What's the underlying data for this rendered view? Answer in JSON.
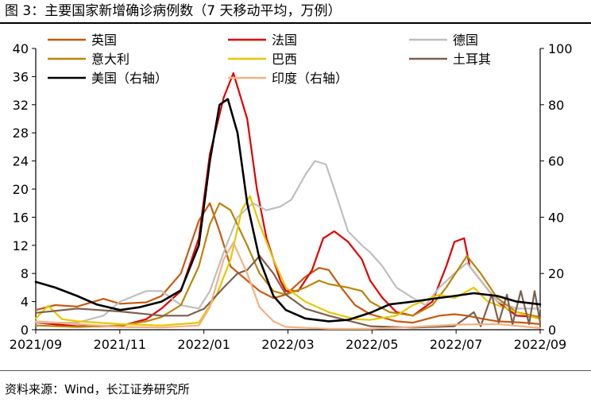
{
  "figure": {
    "title": "图 3：主要国家新增确诊病例数（7 天移动平均，万例）",
    "source": "资料来源：Wind，长江证券研究所"
  },
  "chart_data": {
    "type": "line",
    "title": "",
    "xlabel": "",
    "ylabel": "",
    "x_tick_labels": [
      "2021/09",
      "2021/11",
      "2022/01",
      "2022/03",
      "2022/05",
      "2022/07",
      "2022/09"
    ],
    "x_range": [
      "2021-09",
      "2022-09"
    ],
    "ylim_left": [
      0,
      40
    ],
    "yticks_left": [
      0,
      4,
      8,
      12,
      16,
      20,
      24,
      28,
      32,
      36,
      40
    ],
    "ylim_right": [
      0,
      100
    ],
    "yticks_right": [
      0,
      20,
      40,
      60,
      80,
      100
    ],
    "grid": false,
    "legend_position": "top",
    "series": [
      {
        "name": "英国",
        "axis": "left",
        "color": "#C55A11",
        "points": [
          [
            "2021-09",
            2.8
          ],
          [
            "2021-09-15",
            3.5
          ],
          [
            "2021-10",
            3.3
          ],
          [
            "2021-10-20",
            4.4
          ],
          [
            "2021-11",
            3.7
          ],
          [
            "2021-11-20",
            3.9
          ],
          [
            "2021-12",
            4.8
          ],
          [
            "2021-12-15",
            8.0
          ],
          [
            "2021-12-28",
            15.5
          ],
          [
            "2022-01-05",
            18.0
          ],
          [
            "2022-01-12",
            14.0
          ],
          [
            "2022-01-20",
            9.0
          ],
          [
            "2022-02",
            7.0
          ],
          [
            "2022-02-10",
            5.5
          ],
          [
            "2022-02-20",
            4.5
          ],
          [
            "2022-03",
            5.0
          ],
          [
            "2022-03-15",
            7.5
          ],
          [
            "2022-03-25",
            8.8
          ],
          [
            "2022-04",
            8.5
          ],
          [
            "2022-04-10",
            6.0
          ],
          [
            "2022-04-20",
            3.5
          ],
          [
            "2022-05",
            2.2
          ],
          [
            "2022-05-20",
            1.2
          ],
          [
            "2022-06",
            1.0
          ],
          [
            "2022-06-20",
            2.0
          ],
          [
            "2022-07",
            2.2
          ],
          [
            "2022-07-10",
            2.0
          ],
          [
            "2022-07-20",
            1.6
          ],
          [
            "2022-08",
            1.2
          ],
          [
            "2022-08-20",
            1.0
          ],
          [
            "2022-09",
            0.8
          ]
        ]
      },
      {
        "name": "法国",
        "axis": "left",
        "color": "#E00000",
        "points": [
          [
            "2021-09",
            1.0
          ],
          [
            "2021-10",
            0.5
          ],
          [
            "2021-11",
            0.5
          ],
          [
            "2021-11-20",
            1.5
          ],
          [
            "2021-12",
            3.0
          ],
          [
            "2021-12-15",
            5.5
          ],
          [
            "2021-12-28",
            13.0
          ],
          [
            "2022-01-05",
            25.0
          ],
          [
            "2022-01-15",
            33.0
          ],
          [
            "2022-01-22",
            36.5
          ],
          [
            "2022-02",
            30.0
          ],
          [
            "2022-02-08",
            20.0
          ],
          [
            "2022-02-15",
            13.0
          ],
          [
            "2022-02-25",
            7.0
          ],
          [
            "2022-03",
            5.5
          ],
          [
            "2022-03-10",
            5.5
          ],
          [
            "2022-03-20",
            8.5
          ],
          [
            "2022-03-28",
            13.0
          ],
          [
            "2022-04-05",
            14.0
          ],
          [
            "2022-04-15",
            12.5
          ],
          [
            "2022-04-25",
            10.0
          ],
          [
            "2022-05",
            7.0
          ],
          [
            "2022-05-10",
            4.5
          ],
          [
            "2022-05-20",
            2.5
          ],
          [
            "2022-06",
            2.0
          ],
          [
            "2022-06-15",
            4.0
          ],
          [
            "2022-06-25",
            9.0
          ],
          [
            "2022-07",
            12.5
          ],
          [
            "2022-07-08",
            13.0
          ],
          [
            "2022-07-12",
            9.0
          ],
          [
            "2022-07-20",
            7.0
          ],
          [
            "2022-08",
            4.0
          ],
          [
            "2022-08-15",
            2.0
          ],
          [
            "2022-09",
            1.8
          ]
        ]
      },
      {
        "name": "德国",
        "axis": "left",
        "color": "#BFBFBF",
        "points": [
          [
            "2021-09",
            1.0
          ],
          [
            "2021-10",
            1.0
          ],
          [
            "2021-10-20",
            2.0
          ],
          [
            "2021-11",
            4.0
          ],
          [
            "2021-11-20",
            5.5
          ],
          [
            "2021-12",
            5.5
          ],
          [
            "2021-12-15",
            3.5
          ],
          [
            "2021-12-28",
            3.0
          ],
          [
            "2022-01-05",
            5.5
          ],
          [
            "2022-01-15",
            11.0
          ],
          [
            "2022-01-25",
            16.0
          ],
          [
            "2022-02-05",
            18.0
          ],
          [
            "2022-02-15",
            17.0
          ],
          [
            "2022-02-25",
            17.5
          ],
          [
            "2022-03-05",
            18.5
          ],
          [
            "2022-03-15",
            22.0
          ],
          [
            "2022-03-22",
            24.0
          ],
          [
            "2022-03-30",
            23.5
          ],
          [
            "2022-04-05",
            20.0
          ],
          [
            "2022-04-15",
            14.0
          ],
          [
            "2022-04-25",
            12.0
          ],
          [
            "2022-05",
            11.0
          ],
          [
            "2022-05-10",
            9.0
          ],
          [
            "2022-05-20",
            6.0
          ],
          [
            "2022-06",
            4.5
          ],
          [
            "2022-06-10",
            3.5
          ],
          [
            "2022-06-20",
            6.0
          ],
          [
            "2022-07",
            8.0
          ],
          [
            "2022-07-10",
            9.5
          ],
          [
            "2022-07-20",
            7.0
          ],
          [
            "2022-08",
            4.0
          ],
          [
            "2022-08-15",
            3.0
          ],
          [
            "2022-09",
            3.0
          ]
        ]
      },
      {
        "name": "意大利",
        "axis": "left",
        "color": "#B8860B",
        "points": [
          [
            "2021-09",
            0.6
          ],
          [
            "2021-10",
            0.4
          ],
          [
            "2021-11",
            0.6
          ],
          [
            "2021-11-20",
            1.2
          ],
          [
            "2021-12",
            1.8
          ],
          [
            "2021-12-15",
            3.5
          ],
          [
            "2021-12-28",
            9.0
          ],
          [
            "2022-01-05",
            15.0
          ],
          [
            "2022-01-12",
            18.0
          ],
          [
            "2022-01-20",
            17.0
          ],
          [
            "2022-02",
            12.0
          ],
          [
            "2022-02-10",
            8.0
          ],
          [
            "2022-02-20",
            5.5
          ],
          [
            "2022-03",
            5.0
          ],
          [
            "2022-03-15",
            6.0
          ],
          [
            "2022-03-25",
            7.0
          ],
          [
            "2022-04",
            6.5
          ],
          [
            "2022-04-15",
            6.0
          ],
          [
            "2022-04-25",
            5.5
          ],
          [
            "2022-05",
            4.0
          ],
          [
            "2022-05-15",
            2.5
          ],
          [
            "2022-06",
            2.0
          ],
          [
            "2022-06-15",
            3.5
          ],
          [
            "2022-06-25",
            6.0
          ],
          [
            "2022-07-05",
            9.0
          ],
          [
            "2022-07-10",
            10.5
          ],
          [
            "2022-07-20",
            8.0
          ],
          [
            "2022-08",
            4.5
          ],
          [
            "2022-08-15",
            2.5
          ],
          [
            "2022-09",
            1.8
          ]
        ]
      },
      {
        "name": "巴西",
        "axis": "left",
        "color": "#E6C700",
        "points": [
          [
            "2021-09",
            1.6
          ],
          [
            "2021-09-10",
            3.4
          ],
          [
            "2021-09-20",
            1.5
          ],
          [
            "2021-10",
            1.2
          ],
          [
            "2021-11",
            0.8
          ],
          [
            "2021-12",
            0.6
          ],
          [
            "2021-12-28",
            1.0
          ],
          [
            "2022-01-10",
            5.0
          ],
          [
            "2022-01-20",
            10.0
          ],
          [
            "2022-01-28",
            17.0
          ],
          [
            "2022-02-03",
            19.0
          ],
          [
            "2022-02-10",
            15.0
          ],
          [
            "2022-02-20",
            10.0
          ],
          [
            "2022-03",
            6.0
          ],
          [
            "2022-03-15",
            4.0
          ],
          [
            "2022-04",
            2.5
          ],
          [
            "2022-04-20",
            1.5
          ],
          [
            "2022-05",
            1.4
          ],
          [
            "2022-05-20",
            2.0
          ],
          [
            "2022-06",
            3.5
          ],
          [
            "2022-06-20",
            5.0
          ],
          [
            "2022-07",
            4.5
          ],
          [
            "2022-07-15",
            6.0
          ],
          [
            "2022-07-25",
            4.0
          ],
          [
            "2022-08",
            3.5
          ],
          [
            "2022-08-15",
            2.5
          ],
          [
            "2022-09",
            1.5
          ]
        ]
      },
      {
        "name": "土耳其",
        "axis": "left",
        "color": "#7F5F50",
        "points": [
          [
            "2021-09",
            2.4
          ],
          [
            "2021-10",
            3.0
          ],
          [
            "2021-11",
            2.6
          ],
          [
            "2021-12",
            2.0
          ],
          [
            "2021-12-20",
            2.0
          ],
          [
            "2022-01",
            3.0
          ],
          [
            "2022-01-15",
            6.0
          ],
          [
            "2022-01-25",
            8.0
          ],
          [
            "2022-02",
            8.5
          ],
          [
            "2022-02-10",
            10.5
          ],
          [
            "2022-02-20",
            8.0
          ],
          [
            "2022-03",
            5.0
          ],
          [
            "2022-03-15",
            3.0
          ],
          [
            "2022-04",
            2.0
          ],
          [
            "2022-05",
            0.5
          ],
          [
            "2022-06",
            0.3
          ],
          [
            "2022-07",
            0.5
          ],
          [
            "2022-07-15",
            2.5
          ],
          [
            "2022-07-20",
            0.5
          ],
          [
            "2022-07-28",
            5.0
          ],
          [
            "2022-08-02",
            1.0
          ],
          [
            "2022-08-08",
            5.0
          ],
          [
            "2022-08-12",
            0.8
          ],
          [
            "2022-08-18",
            5.5
          ],
          [
            "2022-08-24",
            0.8
          ],
          [
            "2022-08-28",
            5.5
          ],
          [
            "2022-09",
            1.0
          ]
        ]
      },
      {
        "name": "美国（右轴）",
        "axis": "right",
        "color": "#000000",
        "points": [
          [
            "2021-09",
            17.0
          ],
          [
            "2021-09-15",
            15.0
          ],
          [
            "2021-10",
            12.0
          ],
          [
            "2021-10-15",
            9.0
          ],
          [
            "2021-11",
            7.0
          ],
          [
            "2021-11-15",
            8.0
          ],
          [
            "2021-12",
            10.0
          ],
          [
            "2021-12-15",
            14.0
          ],
          [
            "2021-12-28",
            30.0
          ],
          [
            "2022-01-05",
            60.0
          ],
          [
            "2022-01-12",
            80.0
          ],
          [
            "2022-01-18",
            82.0
          ],
          [
            "2022-01-25",
            70.0
          ],
          [
            "2022-02",
            45.0
          ],
          [
            "2022-02-10",
            25.0
          ],
          [
            "2022-02-20",
            12.0
          ],
          [
            "2022-03",
            7.0
          ],
          [
            "2022-03-15",
            4.0
          ],
          [
            "2022-04",
            3.0
          ],
          [
            "2022-04-15",
            3.5
          ],
          [
            "2022-05",
            6.0
          ],
          [
            "2022-05-15",
            9.0
          ],
          [
            "2022-06",
            10.0
          ],
          [
            "2022-06-15",
            11.0
          ],
          [
            "2022-07",
            12.0
          ],
          [
            "2022-07-15",
            13.0
          ],
          [
            "2022-08",
            12.0
          ],
          [
            "2022-08-15",
            10.0
          ],
          [
            "2022-09",
            9.0
          ]
        ]
      },
      {
        "name": "印度（右轴）",
        "axis": "right",
        "color": "#F4B183",
        "points": [
          [
            "2021-09",
            3.0
          ],
          [
            "2021-10",
            2.0
          ],
          [
            "2021-11",
            1.0
          ],
          [
            "2021-12",
            0.8
          ],
          [
            "2021-12-28",
            1.5
          ],
          [
            "2022-01-05",
            8.0
          ],
          [
            "2022-01-15",
            25.0
          ],
          [
            "2022-01-22",
            31.0
          ],
          [
            "2022-02",
            20.0
          ],
          [
            "2022-02-10",
            8.0
          ],
          [
            "2022-02-20",
            3.0
          ],
          [
            "2022-03",
            1.0
          ],
          [
            "2022-04",
            0.3
          ],
          [
            "2022-05",
            0.3
          ],
          [
            "2022-06",
            1.0
          ],
          [
            "2022-07",
            1.8
          ],
          [
            "2022-08",
            2.0
          ],
          [
            "2022-09",
            0.6
          ]
        ]
      }
    ]
  }
}
